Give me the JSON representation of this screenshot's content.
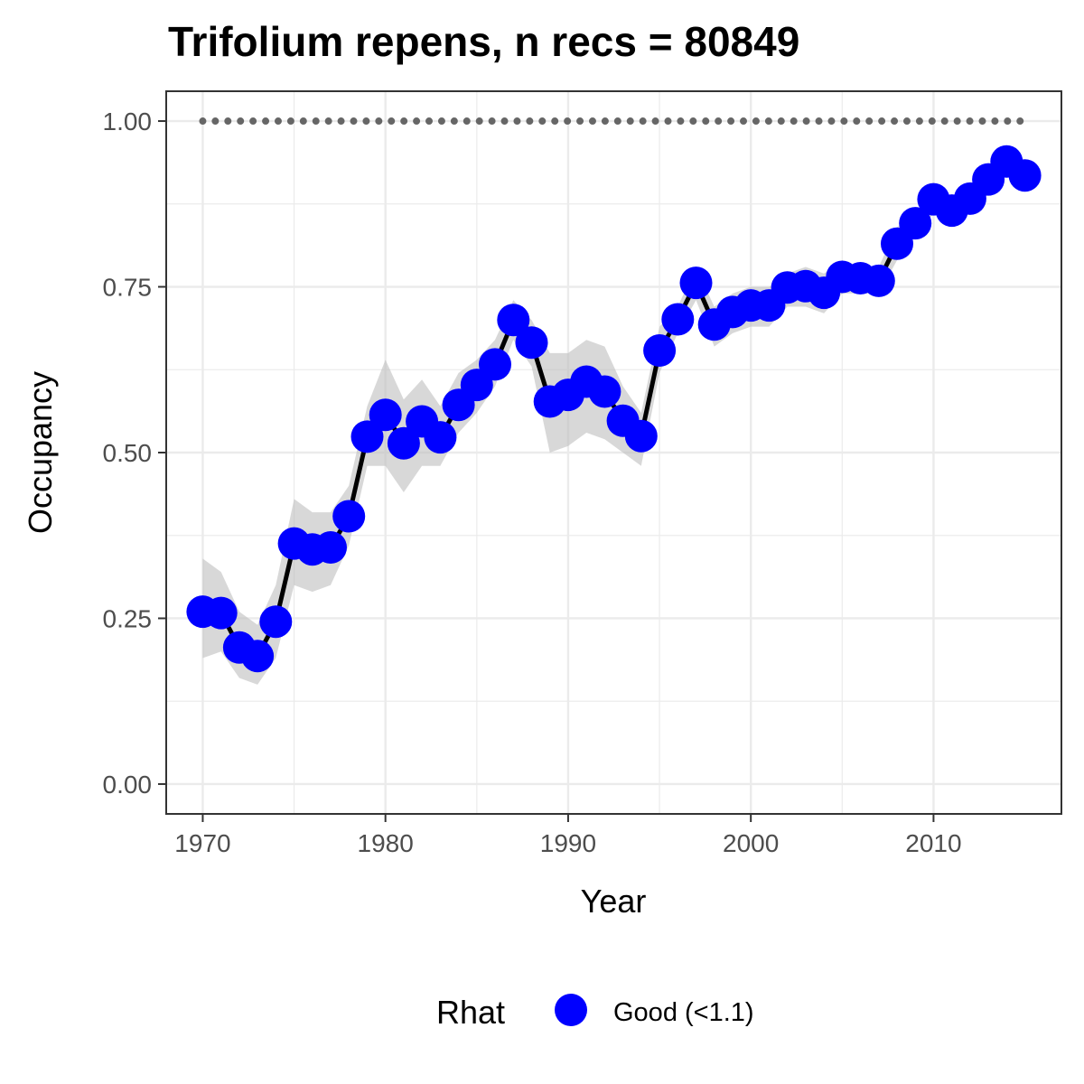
{
  "chart_data": {
    "type": "line",
    "title": "Trifolium repens, n recs = 80849",
    "xlabel": "Year",
    "ylabel": "Occupancy",
    "xlim": [
      1968,
      2017
    ],
    "ylim": [
      -0.045,
      1.045
    ],
    "x_ticks": [
      1970,
      1980,
      1990,
      2000,
      2010
    ],
    "x_tick_labels": [
      "1970",
      "1980",
      "1990",
      "2000",
      "2010"
    ],
    "y_ticks": [
      0,
      0.25,
      0.5,
      0.75,
      1
    ],
    "y_tick_labels": [
      "0.00",
      "0.25",
      "0.50",
      "0.75",
      "1.00"
    ],
    "grid": true,
    "legend": {
      "title": "Rhat",
      "position": "bottom",
      "entries": [
        {
          "label": "Good (<1.1)",
          "color": "#0000ff"
        }
      ]
    },
    "colors": {
      "points": "#0000ff",
      "line": "#000000",
      "ribbon": "#bebebe",
      "reference": "#666666"
    },
    "reference_line": {
      "y": 1.0,
      "style": "dotted"
    },
    "series": [
      {
        "x": [
          1970,
          1971,
          1972,
          1973,
          1974,
          1975,
          1976,
          1977,
          1978,
          1979,
          1980,
          1981,
          1982,
          1983,
          1984,
          1985,
          1986,
          1987,
          1988,
          1989,
          1990,
          1991,
          1992,
          1993,
          1994,
          1995,
          1996,
          1997,
          1998,
          1999,
          2000,
          2001,
          2002,
          2003,
          2004,
          2005,
          2006,
          2007,
          2008,
          2009,
          2010,
          2011,
          2012,
          2013,
          2014,
          2015
        ],
        "y": [
          0.26,
          0.258,
          0.206,
          0.193,
          0.245,
          0.363,
          0.354,
          0.357,
          0.404,
          0.524,
          0.557,
          0.514,
          0.547,
          0.523,
          0.572,
          0.602,
          0.633,
          0.7,
          0.666,
          0.577,
          0.587,
          0.607,
          0.592,
          0.548,
          0.525,
          0.654,
          0.701,
          0.756,
          0.693,
          0.712,
          0.722,
          0.722,
          0.749,
          0.751,
          0.741,
          0.765,
          0.763,
          0.759,
          0.815,
          0.846,
          0.882,
          0.865,
          0.883,
          0.912,
          0.939,
          0.918
        ],
        "lower": [
          0.19,
          0.2,
          0.16,
          0.15,
          0.19,
          0.3,
          0.29,
          0.3,
          0.36,
          0.48,
          0.48,
          0.44,
          0.48,
          0.48,
          0.53,
          0.56,
          0.6,
          0.67,
          0.63,
          0.5,
          0.51,
          0.53,
          0.52,
          0.5,
          0.48,
          0.62,
          0.68,
          0.73,
          0.66,
          0.68,
          0.69,
          0.69,
          0.72,
          0.72,
          0.71,
          0.74,
          0.74,
          0.74,
          0.79,
          0.83,
          0.86,
          0.85,
          0.86,
          0.89,
          0.92,
          0.9
        ],
        "upper": [
          0.34,
          0.32,
          0.26,
          0.24,
          0.3,
          0.43,
          0.41,
          0.41,
          0.45,
          0.57,
          0.64,
          0.58,
          0.61,
          0.57,
          0.62,
          0.64,
          0.67,
          0.73,
          0.7,
          0.65,
          0.65,
          0.67,
          0.66,
          0.6,
          0.56,
          0.69,
          0.72,
          0.78,
          0.72,
          0.74,
          0.75,
          0.75,
          0.77,
          0.78,
          0.77,
          0.79,
          0.78,
          0.78,
          0.84,
          0.86,
          0.9,
          0.88,
          0.9,
          0.93,
          0.96,
          0.94
        ]
      }
    ]
  }
}
